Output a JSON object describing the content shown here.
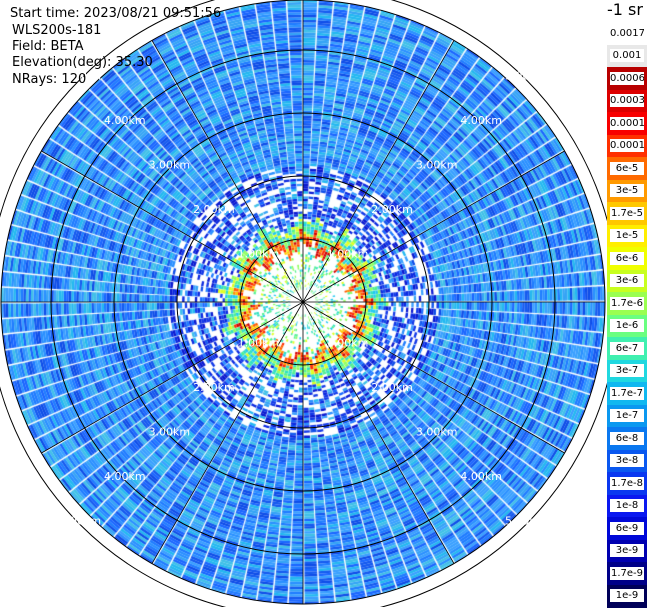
{
  "header": {
    "start_time": "Start time: 2023/08/21 09:51:56",
    "instrument": "WLS200s-181",
    "field": "Field: BETA",
    "elevation": "Elevation(deg): 35.30",
    "nrays": "NRays: 120"
  },
  "unit_label": "-1 sr",
  "range_rings": [
    {
      "label": "1.00km",
      "km": 1
    },
    {
      "label": "2.00km",
      "km": 2
    },
    {
      "label": "3.00km",
      "km": 3
    },
    {
      "label": "4.00km",
      "km": 4
    },
    {
      "label": "5.00km",
      "km": 5
    }
  ],
  "nrays_value": 120,
  "colorbar": [
    {
      "label": "0.0017",
      "color": "#ffffff"
    },
    {
      "label": "0.001",
      "color": "#e8e8e8"
    },
    {
      "label": "0.0006",
      "color": "#b80000"
    },
    {
      "label": "0.0003",
      "color": "#dd0000"
    },
    {
      "label": "0.00017",
      "color": "#f80000"
    },
    {
      "label": "0.0001",
      "color": "#ff3000"
    },
    {
      "label": "6e-5",
      "color": "#ff6a00"
    },
    {
      "label": "3e-5",
      "color": "#ff9a00"
    },
    {
      "label": "1.7e-5",
      "color": "#ffc800"
    },
    {
      "label": "1e-5",
      "color": "#ffee00"
    },
    {
      "label": "6e-6",
      "color": "#f0ff00"
    },
    {
      "label": "3e-6",
      "color": "#c8ff20"
    },
    {
      "label": "1.7e-6",
      "color": "#9aff50"
    },
    {
      "label": "1e-6",
      "color": "#6aff80"
    },
    {
      "label": "6e-7",
      "color": "#40f0b0"
    },
    {
      "label": "3e-7",
      "color": "#20d8e0"
    },
    {
      "label": "1.7e-7",
      "color": "#10b8f0"
    },
    {
      "label": "1e-7",
      "color": "#0a98f0"
    },
    {
      "label": "6e-8",
      "color": "#0a78f0"
    },
    {
      "label": "3e-8",
      "color": "#0a58f0"
    },
    {
      "label": "1.7e-8",
      "color": "#0a38f0"
    },
    {
      "label": "1e-8",
      "color": "#0a18f0"
    },
    {
      "label": "6e-9",
      "color": "#0008d8"
    },
    {
      "label": "3e-9",
      "color": "#0000b0"
    },
    {
      "label": "1.7e-9",
      "color": "#000088"
    },
    {
      "label": "1e-9",
      "color": "#000058"
    }
  ]
}
